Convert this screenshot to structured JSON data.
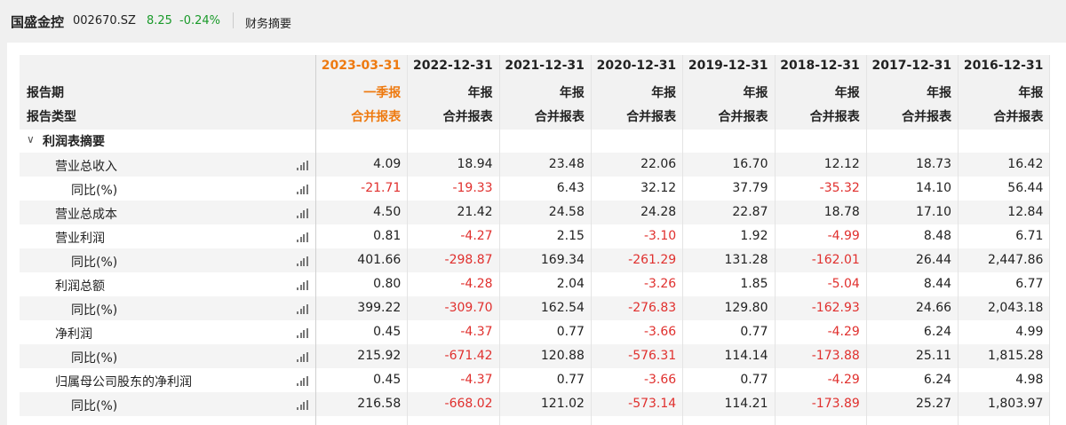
{
  "header": {
    "name": "国盛金控",
    "code": "002670.SZ",
    "price": "8.25",
    "change": "-0.24%",
    "tab": "财务摘要"
  },
  "table": {
    "period_label": "报告期",
    "type_label": "报告类型",
    "columns": [
      {
        "date": "2023-03-31",
        "period": "一季报",
        "type": "合并报表"
      },
      {
        "date": "2022-12-31",
        "period": "年报",
        "type": "合并报表"
      },
      {
        "date": "2021-12-31",
        "period": "年报",
        "type": "合并报表"
      },
      {
        "date": "2020-12-31",
        "period": "年报",
        "type": "合并报表"
      },
      {
        "date": "2019-12-31",
        "period": "年报",
        "type": "合并报表"
      },
      {
        "date": "2018-12-31",
        "period": "年报",
        "type": "合并报表"
      },
      {
        "date": "2017-12-31",
        "period": "年报",
        "type": "合并报表"
      },
      {
        "date": "2016-12-31",
        "period": "年报",
        "type": "合并报表"
      }
    ],
    "section": "利润表摘要",
    "items": [
      {
        "label": "营业总收入",
        "values": [
          "4.09",
          "18.94",
          "23.48",
          "22.06",
          "16.70",
          "12.12",
          "18.73",
          "16.42"
        ],
        "yoy": {
          "label": "同比(%)",
          "values": [
            "-21.71",
            "-19.33",
            "6.43",
            "32.12",
            "37.79",
            "-35.32",
            "14.10",
            "56.44"
          ]
        }
      },
      {
        "label": "营业总成本",
        "values": [
          "4.50",
          "21.42",
          "24.58",
          "24.28",
          "22.87",
          "18.78",
          "17.10",
          "12.84"
        ]
      },
      {
        "label": "营业利润",
        "values": [
          "0.81",
          "-4.27",
          "2.15",
          "-3.10",
          "1.92",
          "-4.99",
          "8.48",
          "6.71"
        ],
        "yoy": {
          "label": "同比(%)",
          "values": [
            "401.66",
            "-298.87",
            "169.34",
            "-261.29",
            "131.28",
            "-162.01",
            "26.44",
            "2,447.86"
          ]
        }
      },
      {
        "label": "利润总额",
        "values": [
          "0.80",
          "-4.28",
          "2.04",
          "-3.26",
          "1.85",
          "-5.04",
          "8.44",
          "6.77"
        ],
        "yoy": {
          "label": "同比(%)",
          "values": [
            "399.22",
            "-309.70",
            "162.54",
            "-276.83",
            "129.80",
            "-162.93",
            "24.66",
            "2,043.18"
          ]
        }
      },
      {
        "label": "净利润",
        "values": [
          "0.45",
          "-4.37",
          "0.77",
          "-3.66",
          "0.77",
          "-4.29",
          "6.24",
          "4.99"
        ],
        "yoy": {
          "label": "同比(%)",
          "values": [
            "215.92",
            "-671.42",
            "120.88",
            "-576.31",
            "114.14",
            "-173.88",
            "25.11",
            "1,815.28"
          ]
        }
      },
      {
        "label": "归属母公司股东的净利润",
        "values": [
          "0.45",
          "-4.37",
          "0.77",
          "-3.66",
          "0.77",
          "-4.29",
          "6.24",
          "4.98"
        ],
        "yoy": {
          "label": "同比(%)",
          "values": [
            "216.58",
            "-668.02",
            "121.02",
            "-573.14",
            "114.21",
            "-173.89",
            "25.27",
            "1,803.97"
          ]
        }
      }
    ]
  }
}
